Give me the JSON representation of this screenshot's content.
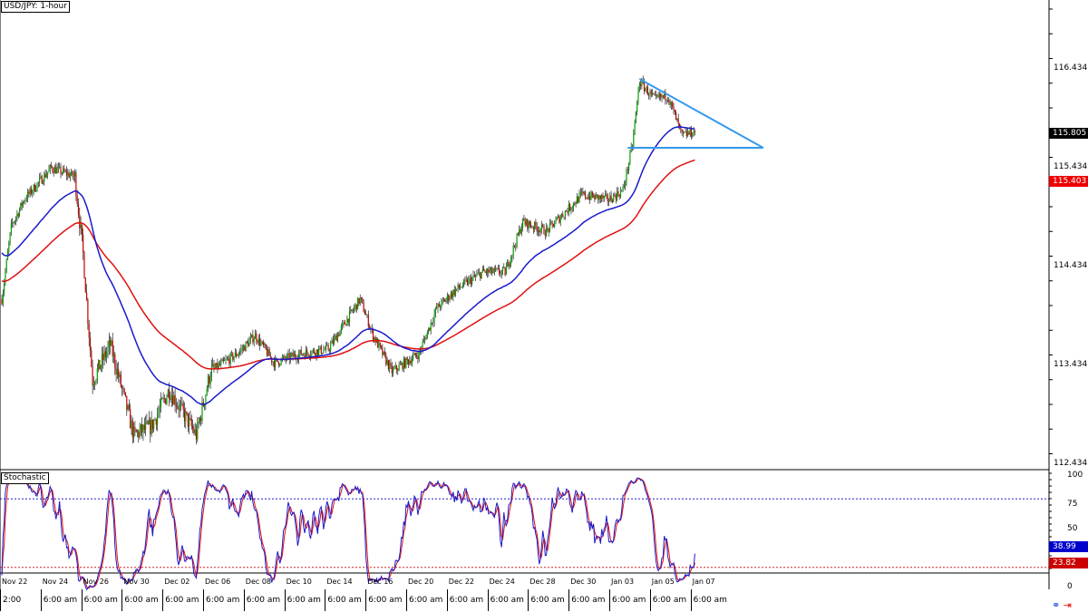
{
  "title": "USD/JPY: 1-hour",
  "indicator_title": "Stochastic",
  "price_axis": [
    "116.434",
    "115.434",
    "114.434",
    "113.434",
    "112.434"
  ],
  "price_axis_values": [
    116.434,
    115.434,
    114.434,
    113.434,
    112.434
  ],
  "current_price": "115.805",
  "ma_price": "115.403",
  "stoch_axis": [
    "100",
    "75",
    "50",
    "0"
  ],
  "stoch_axis_values": [
    100,
    75,
    50,
    0
  ],
  "stoch_levels": [
    80,
    20
  ],
  "stoch_main": "38.99",
  "stoch_signal": "23.82",
  "x_dates": [
    "Nov 22",
    "Nov 24",
    "Nov 26",
    "Nov 30",
    "Dec 02",
    "Dec 06",
    "Dec 08",
    "Dec 10",
    "Dec 14",
    "Dec 16",
    "Dec 20",
    "Dec 22",
    "Dec 24",
    "Dec 28",
    "Dec 30",
    "Jan 03",
    "Jan 05",
    "Jan 07"
  ],
  "x_times": [
    "2:00",
    "6:00 am",
    "6:00 am",
    "6:00 am",
    "6:00 am",
    "6:00 am",
    "6:00 am",
    "6:00 am",
    "6:00 am",
    "6:00 am",
    "6:00 am",
    "6:00 am",
    "6:00 am",
    "6:00 am",
    "6:00 am",
    "6:00 am",
    "6:00 am",
    "6:00 am"
  ],
  "colors": {
    "bull": "#00a000",
    "bear": "#c00000",
    "ma_fast": "#1a1acc",
    "ma_slow": "#e01010",
    "trend": "#3399ee",
    "stoch_main": "#1a1acc",
    "stoch_signal": "#e01010",
    "tag_price": "#000000",
    "tag_ma": "#ee0000",
    "tag_stoch_main": "#0000cc",
    "tag_stoch_signal": "#cc0000"
  },
  "chart_data": {
    "type": "candlestick",
    "price_keyframes": [
      [
        0,
        114.113
      ],
      [
        8,
        114.847
      ],
      [
        19,
        115.122
      ],
      [
        42,
        115.443
      ],
      [
        62,
        115.351
      ],
      [
        69,
        114.572
      ],
      [
        77,
        113.287
      ],
      [
        92,
        113.654
      ],
      [
        112,
        112.737
      ],
      [
        127,
        112.828
      ],
      [
        142,
        113.196
      ],
      [
        165,
        112.737
      ],
      [
        177,
        113.379
      ],
      [
        200,
        113.563
      ],
      [
        215,
        113.746
      ],
      [
        231,
        113.471
      ],
      [
        254,
        113.563
      ],
      [
        277,
        113.608
      ],
      [
        304,
        114.113
      ],
      [
        315,
        113.746
      ],
      [
        331,
        113.379
      ],
      [
        354,
        113.563
      ],
      [
        369,
        114.021
      ],
      [
        385,
        114.205
      ],
      [
        408,
        114.388
      ],
      [
        427,
        114.388
      ],
      [
        442,
        114.893
      ],
      [
        462,
        114.801
      ],
      [
        477,
        114.984
      ],
      [
        492,
        115.168
      ],
      [
        515,
        115.122
      ],
      [
        527,
        115.214
      ],
      [
        535,
        115.672
      ],
      [
        541,
        116.315
      ],
      [
        554,
        116.131
      ],
      [
        565,
        116.177
      ],
      [
        577,
        115.764
      ],
      [
        588,
        115.81
      ]
    ],
    "ylim": [
      112.3,
      116.9
    ],
    "triangle": {
      "top": [
        [
          541,
          116.342
        ],
        [
          646,
          115.645
        ]
      ],
      "bottom": [
        [
          531,
          115.645
        ],
        [
          646,
          115.645
        ]
      ]
    }
  }
}
